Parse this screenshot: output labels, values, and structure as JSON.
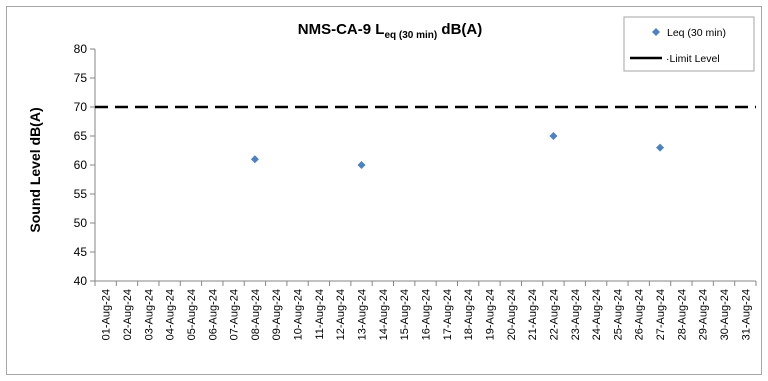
{
  "chart_data": {
    "type": "scatter",
    "title": {
      "prefix": "NMS-CA-9 L",
      "subscript": "eq (30 min)",
      "suffix": " dB(A)"
    },
    "xlabel": "",
    "ylabel": "Sound Level dB(A)",
    "ylim": [
      40,
      80
    ],
    "yticks": [
      40,
      45,
      50,
      55,
      60,
      65,
      70,
      75,
      80
    ],
    "grid": false,
    "legend_position": "top-right",
    "categories": [
      "01-Aug-24",
      "02-Aug-24",
      "03-Aug-24",
      "04-Aug-24",
      "05-Aug-24",
      "06-Aug-24",
      "07-Aug-24",
      "08-Aug-24",
      "09-Aug-24",
      "10-Aug-24",
      "11-Aug-24",
      "12-Aug-24",
      "13-Aug-24",
      "14-Aug-24",
      "15-Aug-24",
      "16-Aug-24",
      "17-Aug-24",
      "18-Aug-24",
      "19-Aug-24",
      "20-Aug-24",
      "21-Aug-24",
      "22-Aug-24",
      "23-Aug-24",
      "24-Aug-24",
      "25-Aug-24",
      "26-Aug-24",
      "27-Aug-24",
      "28-Aug-24",
      "29-Aug-24",
      "30-Aug-24",
      "31-Aug-24"
    ],
    "series": [
      {
        "name": "Leq (30 min)",
        "marker": "diamond",
        "color": "#4f81bd",
        "points": [
          {
            "x": "08-Aug-24",
            "y": 61
          },
          {
            "x": "13-Aug-24",
            "y": 60
          },
          {
            "x": "22-Aug-24",
            "y": 65
          },
          {
            "x": "27-Aug-24",
            "y": 63
          }
        ]
      },
      {
        "name": "Limit Level",
        "style": "dashed",
        "color": "#000000",
        "value": 70
      }
    ]
  }
}
